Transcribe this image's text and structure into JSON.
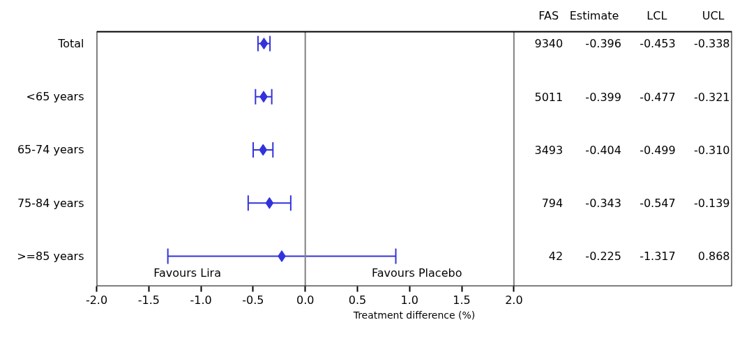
{
  "chart_data": {
    "type": "scatter",
    "orientation": "horizontal",
    "marker": "diamond",
    "xlabel": "Treatment difference (%)",
    "categories": [
      "Total",
      "<65 years",
      "65-74 years",
      "75-84 years",
      ">=85 years"
    ],
    "series": [
      {
        "color": "#3232dc",
        "values": [
          -0.396,
          -0.399,
          -0.404,
          -0.343,
          -0.225
        ],
        "errors": [
          [
            -0.453,
            -0.338
          ],
          [
            -0.477,
            -0.321
          ],
          [
            -0.499,
            -0.31
          ],
          [
            -0.547,
            -0.139
          ],
          [
            -1.317,
            0.868
          ]
        ]
      }
    ],
    "xlim": [
      -2,
      4.09
    ],
    "xticks": [
      {
        "value": -2,
        "label": "-2.0"
      },
      {
        "value": -1.5,
        "label": "-1.5"
      },
      {
        "value": -1,
        "label": "-1.0"
      },
      {
        "value": -0.5,
        "label": "-0.5"
      },
      {
        "value": 0,
        "label": "0.0"
      },
      {
        "value": 0.5,
        "label": "0.5"
      },
      {
        "value": 1,
        "label": "1.0"
      },
      {
        "value": 1.5,
        "label": "1.5"
      },
      {
        "value": 2,
        "label": "2.0"
      }
    ],
    "ref_lines": [
      {
        "axis": "x",
        "value": 0,
        "color": "#808080"
      },
      {
        "axis": "x",
        "value": 2,
        "color": "#808080"
      }
    ],
    "annotations": [
      "FAS",
      "Estimate",
      "LCL",
      "UCL",
      "Favours Lira",
      "Favours Placebo",
      "9340",
      "-0.396",
      "-0.453",
      "-0.338",
      "5011",
      "-0.399",
      "-0.477",
      "-0.321",
      "3493",
      "-0.404",
      "-0.499",
      "-0.310",
      "794",
      "-0.343",
      "-0.547",
      "-0.139",
      "42",
      "-0.225",
      "-1.317",
      "0.868"
    ]
  }
}
